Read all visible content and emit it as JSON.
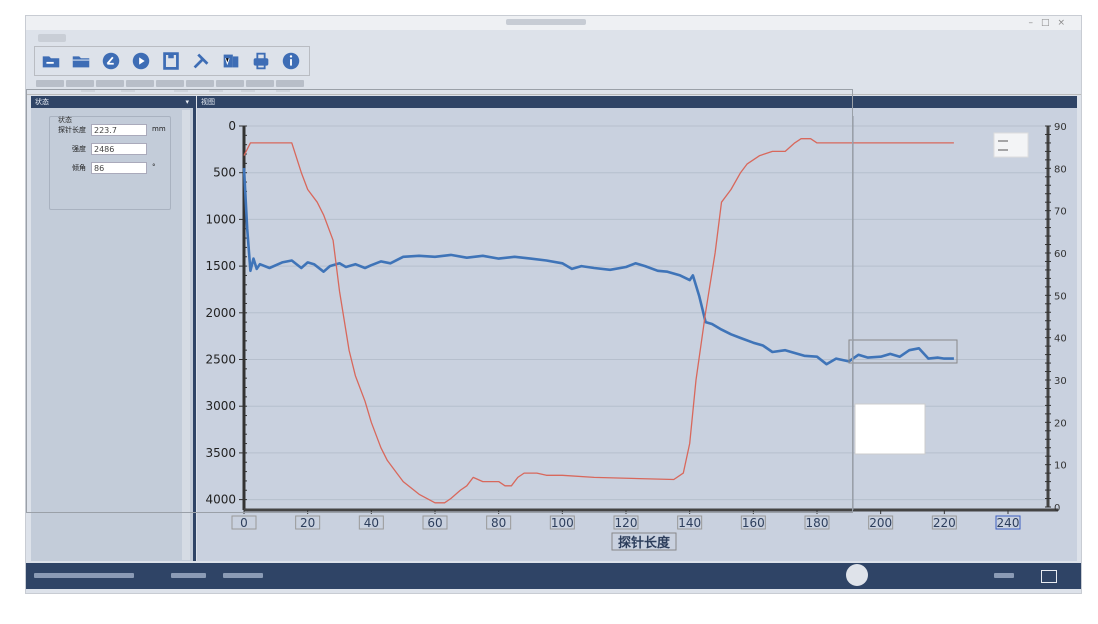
{
  "panels": {
    "left_title": "状态",
    "right_title": "视图",
    "group_title": "状态"
  },
  "fields": [
    {
      "label": "探针长度",
      "value": "223.7",
      "unit": "mm"
    },
    {
      "label": "强度",
      "value": "2486",
      "unit": ""
    },
    {
      "label": "倾角",
      "value": "86",
      "unit": "°"
    }
  ],
  "toolbar": {
    "icons": [
      "folder-open-icon",
      "folder-icon",
      "compass-icon",
      "play-icon",
      "save-icon",
      "tools-icon",
      "word-export-icon",
      "print-icon",
      "info-icon"
    ],
    "accent": "#3e6db5"
  },
  "chart_data": {
    "type": "line",
    "xlabel": "探针长度",
    "x_ticks": [
      0,
      20,
      40,
      60,
      80,
      100,
      120,
      140,
      160,
      180,
      200,
      220,
      240
    ],
    "xlim": [
      0,
      240
    ],
    "left_axis": {
      "ticks": [
        0,
        500,
        1000,
        1500,
        2000,
        2500,
        3000,
        3500,
        4000
      ],
      "ylim": [
        0,
        4100
      ],
      "inverted": true
    },
    "right_axis": {
      "ticks": [
        0,
        10,
        20,
        30,
        40,
        50,
        60,
        70,
        80,
        90
      ],
      "ylim": [
        0,
        90
      ]
    },
    "grid": true,
    "series": [
      {
        "axis": "left",
        "color": "#3f74b8",
        "x": [
          0,
          1,
          2,
          3,
          4,
          5,
          8,
          12,
          15,
          18,
          20,
          22,
          25,
          27,
          30,
          32,
          35,
          38,
          40,
          43,
          46,
          50,
          55,
          60,
          65,
          70,
          75,
          80,
          85,
          90,
          95,
          100,
          103,
          106,
          110,
          115,
          120,
          123,
          126,
          130,
          133,
          137,
          140,
          141,
          143,
          145,
          147,
          150,
          153,
          156,
          160,
          163,
          166,
          170,
          173,
          176,
          180,
          183,
          186,
          190,
          193,
          196,
          200,
          203,
          206,
          209,
          212,
          215,
          218,
          220,
          223
        ],
        "y": [
          450,
          1100,
          1550,
          1420,
          1530,
          1480,
          1520,
          1460,
          1440,
          1520,
          1460,
          1480,
          1560,
          1500,
          1470,
          1510,
          1480,
          1520,
          1490,
          1450,
          1470,
          1400,
          1390,
          1400,
          1380,
          1410,
          1390,
          1420,
          1400,
          1420,
          1440,
          1470,
          1530,
          1500,
          1520,
          1540,
          1510,
          1470,
          1500,
          1550,
          1560,
          1600,
          1650,
          1600,
          1820,
          2100,
          2120,
          2180,
          2230,
          2270,
          2320,
          2350,
          2420,
          2400,
          2430,
          2460,
          2470,
          2550,
          2490,
          2520,
          2450,
          2480,
          2470,
          2440,
          2470,
          2400,
          2380,
          2490,
          2480,
          2490,
          2490
        ]
      },
      {
        "axis": "right",
        "color": "#d8685c",
        "x": [
          0,
          2,
          15,
          18,
          20,
          23,
          25,
          28,
          30,
          33,
          35,
          38,
          40,
          43,
          45,
          48,
          50,
          55,
          60,
          63,
          65,
          68,
          70,
          72,
          75,
          80,
          82,
          84,
          86,
          88,
          92,
          95,
          100,
          110,
          135,
          138,
          140,
          142,
          145,
          148,
          150,
          153,
          156,
          158,
          162,
          166,
          170,
          173,
          175,
          178,
          180,
          190,
          200,
          210,
          223
        ],
        "y": [
          83,
          86,
          86,
          79,
          75,
          72,
          69,
          63,
          51,
          37,
          31,
          25,
          20,
          14,
          11,
          8,
          6,
          3,
          1,
          1,
          2,
          4,
          5,
          7,
          6,
          6,
          5,
          5,
          7,
          8,
          8,
          7.5,
          7.5,
          7,
          6.5,
          8,
          15,
          30,
          46,
          60,
          72,
          75,
          79,
          81,
          83,
          84,
          84,
          86,
          87,
          87,
          86,
          86,
          86,
          86,
          86
        ]
      }
    ]
  },
  "colors": {
    "panel_header": "#2f4466",
    "chart_bg": "#c9d1df",
    "blue": "#3f74b8",
    "red": "#d8685c"
  }
}
